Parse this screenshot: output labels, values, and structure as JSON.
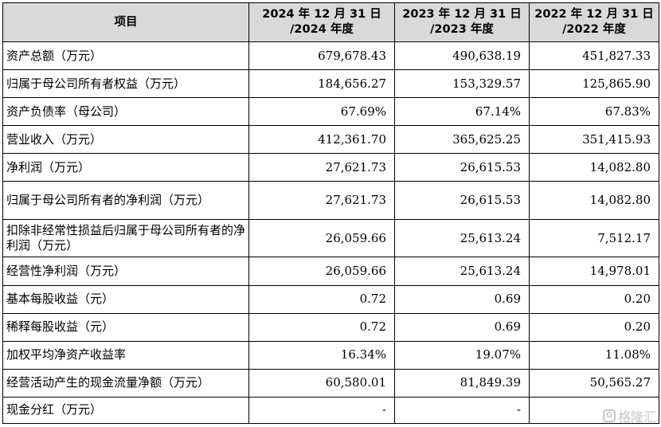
{
  "header": {
    "item": "项目",
    "col2024_line1": "2024 年 12 月 31 日",
    "col2024_line2": "/2024 年度",
    "col2023_line1": "2023 年 12 月 31 日",
    "col2023_line2": "/2023 年度",
    "col2022_line1": "2022 年 12 月 31 日",
    "col2022_line2": "/2022 年度"
  },
  "rows": [
    {
      "label": "资产总额（万元）",
      "v2024": "679,678.43",
      "v2023": "490,638.19",
      "v2022": "451,827.33"
    },
    {
      "label": "归属于母公司所有者权益（万元）",
      "v2024": "184,656.27",
      "v2023": "153,329.57",
      "v2022": "125,865.90"
    },
    {
      "label": "资产负债率（母公司）",
      "v2024": "67.69%",
      "v2023": "67.14%",
      "v2022": "67.83%"
    },
    {
      "label": "营业收入（万元）",
      "v2024": "412,361.70",
      "v2023": "365,625.25",
      "v2022": "351,415.93"
    },
    {
      "label": "净利润（万元）",
      "v2024": "27,621.73",
      "v2023": "26,615.53",
      "v2022": "14,082.80"
    },
    {
      "label": "归属于母公司所有者的净利润（万元）",
      "v2024": "27,621.73",
      "v2023": "26,615.53",
      "v2022": "14,082.80"
    },
    {
      "label": "扣除非经常性损益后归属于母公司所有者的净利润（万元）",
      "v2024": "26,059.66",
      "v2023": "25,613.24",
      "v2022": "7,512.17"
    },
    {
      "label": "经营性净利润（万元）",
      "v2024": "26,059.66",
      "v2023": "25,613.24",
      "v2022": "14,978.01"
    },
    {
      "label": "基本每股收益（元）",
      "v2024": "0.72",
      "v2023": "0.69",
      "v2022": "0.20"
    },
    {
      "label": "稀释每股收益（元）",
      "v2024": "0.72",
      "v2023": "0.69",
      "v2022": "0.20"
    },
    {
      "label": "加权平均净资产收益率",
      "v2024": "16.34%",
      "v2023": "19.07%",
      "v2022": "11.08%"
    },
    {
      "label": "经营活动产生的现金流量净额（万元）",
      "v2024": "60,580.01",
      "v2023": "81,849.39",
      "v2022": "50,565.27"
    },
    {
      "label": "现金分红（万元）",
      "v2024": "-",
      "v2023": "-",
      "v2022": ""
    }
  ],
  "watermark": {
    "icon": "G",
    "text": "格隆汇"
  }
}
